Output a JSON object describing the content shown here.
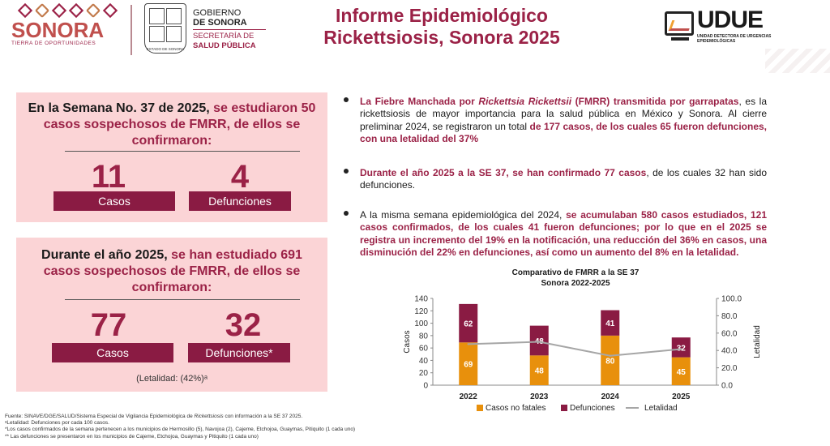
{
  "header": {
    "sonora_logo": {
      "word": "SONORA",
      "tagline": "TIERRA DE OPORTUNIDADES"
    },
    "gobierno_logo": {
      "line1": "GOBIERNO",
      "line2": "DE SONORA",
      "line3": "SECRETARÍA DE",
      "line4": "SALUD PÚBLICA",
      "seal_caption": "ESTADO DE SONORA"
    },
    "title_line1": "Informe Epidemiológico",
    "title_line2": "Rickettsiosis, Sonora 2025",
    "udue_logo": {
      "name": "UDUE",
      "subtitle": "UNIDAD DETECTORA DE URGENCIAS EPIDEMIOLÓGICAS"
    }
  },
  "panel_week": {
    "text_plain": "En la Semana No. 37 de 2025,",
    "text_highlight": " se estudiaron 50 casos sospechosos de FMRR, de ellos se confirmaron:",
    "cases_value": "11",
    "cases_label": "Casos",
    "deaths_value": "4",
    "deaths_label": "Defunciones"
  },
  "panel_year": {
    "text_plain": "Durante el año 2025,",
    "text_highlight": " se han estudiado 691 casos sospechosos de FMRR, de ellos se confirmaron:",
    "cases_value": "77",
    "cases_label": "Casos",
    "deaths_value": "32",
    "deaths_label": "Defunciones*",
    "lethality_note": "(Letalidad: (42%)ᵃ"
  },
  "bullets": [
    {
      "p1_hl": "La Fiebre Manchada por ",
      "p1_italic": "Rickettsia Rickettsii",
      "p1_hl2": " (FMRR) transmitida por garrapatas",
      "p2": ", es la rickettsiosis de mayor importancia para la salud pública en México y Sonora. Al cierre preliminar 2024, se registraron un total ",
      "p3_hl": "de 177 casos, de los cuales  65 fueron defunciones, con una letalidad del 37%"
    },
    {
      "p1_hl": "Durante el año 2025 a la SE 37, se han confirmado 77 casos",
      "p2": ", de los cuales 32 han sido defunciones."
    },
    {
      "p1": "A la misma semana epidemiológica del 2024, ",
      "p2_hl": "se acumulaban 580 casos estudiados, 121 casos confirmados, de los cuales 41 fueron defunciones; por lo que en el 2025 se registra un incremento del 19% en la notificación, una reducción del 36% en casos, una disminución del 22% en defunciones, así como un aumento del 8% en la letalidad."
    }
  ],
  "chart_data": {
    "type": "bar",
    "title": "Comparativo de FMRR a la SE 37",
    "subtitle": "Sonora 2022-2025",
    "categories": [
      "2022",
      "2023",
      "2024",
      "2025"
    ],
    "series": [
      {
        "name": "Casos no fatales",
        "values": [
          69,
          48,
          80,
          45
        ],
        "color": "#e8900c",
        "kind": "stacked-bar"
      },
      {
        "name": "Defunciones",
        "values": [
          62,
          48,
          41,
          32
        ],
        "color": "#8a1b43",
        "kind": "stacked-bar"
      },
      {
        "name": "Letalidad",
        "values": [
          47.3,
          50.0,
          33.9,
          41.6
        ],
        "color": "#a6a6a6",
        "kind": "line",
        "axis": "right"
      }
    ],
    "ylabel": "Casos",
    "y2label": "Letalidad",
    "ylim": [
      0,
      140
    ],
    "yticks": [
      "0",
      "20",
      "40",
      "60",
      "80",
      "100",
      "120",
      "140"
    ],
    "y2lim": [
      0,
      100
    ],
    "y2ticks": [
      "0.0",
      "20.0",
      "40.0",
      "60.0",
      "80.0",
      "100.0"
    ],
    "legend_position": "bottom",
    "grid": false
  },
  "footer": {
    "line1_a": "Fuente: SINAVE/DGE/SALUD/Sistema Especial de Vigilancia Epidemiológica de ",
    "line1_italic": "Rickettsiosis",
    "line1_b": " con información a la SE 37 2025.",
    "line2": "ᵃLetalidad: Defunciones por cada 100 casos.",
    "line3": "*Los casos confirmados de la semana pertenecen a los  municipios de Hermosillo (5),  Navojoa (2), Cajeme, Etchojoa, Guaymas, Pitiquito (1 cada uno)",
    "line4": "** Las defunciones se presentaron en los municipios de Cajeme, Etchojoa, Guaymas y Pitiquito (1 cada uno)"
  }
}
